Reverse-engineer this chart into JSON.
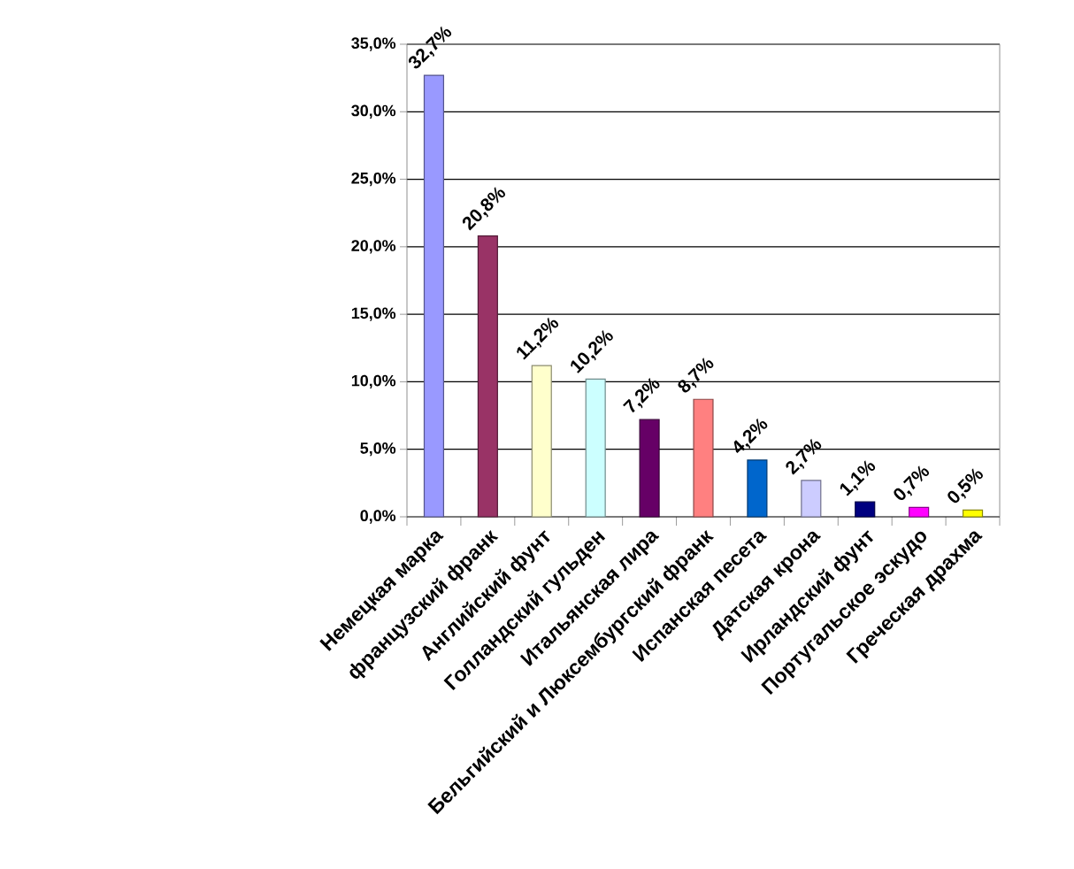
{
  "chart_data": {
    "type": "bar",
    "categories": [
      "Немецкая марка",
      "французский франк",
      "Английский фунт",
      "Голландский гульден",
      "Итальянская лира",
      "Бельгийский и Люксембургский франк",
      "Испанская песета",
      "Датская крона",
      "Ирландский фунт",
      "Португальское эскудо",
      "Греческая драхма"
    ],
    "values": [
      32.7,
      20.8,
      11.2,
      10.2,
      7.2,
      8.7,
      4.2,
      2.7,
      1.1,
      0.7,
      0.5
    ],
    "colors": [
      "#9999ff",
      "#993366",
      "#ffffcc",
      "#ccffff",
      "#660066",
      "#ff8080",
      "#0066cc",
      "#ccccff",
      "#000080",
      "#ff00ff",
      "#ffff00"
    ],
    "value_labels": [
      "32,7%",
      "20,8%",
      "11,2%",
      "10,2%",
      "7,2%",
      "8,7%",
      "4,2%",
      "2,7%",
      "1,1%",
      "0,7%",
      "0,5%"
    ],
    "ylim": [
      0,
      35
    ],
    "yticks": [
      {
        "value": 0,
        "label": "0,0%"
      },
      {
        "value": 5,
        "label": "5,0%"
      },
      {
        "value": 10,
        "label": "10,0%"
      },
      {
        "value": 15,
        "label": "15,0%"
      },
      {
        "value": 20,
        "label": "20,0%"
      },
      {
        "value": 25,
        "label": "25,0%"
      },
      {
        "value": 30,
        "label": "30,0%"
      },
      {
        "value": 35,
        "label": "35,0%"
      }
    ],
    "grid": "y"
  }
}
